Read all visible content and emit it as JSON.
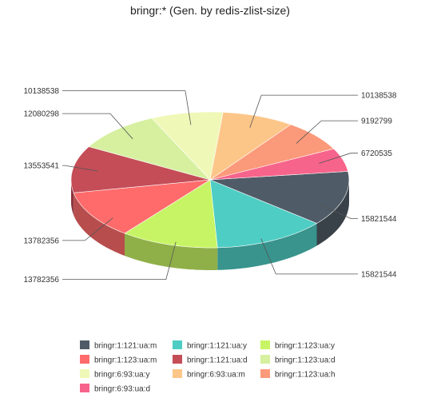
{
  "chart_data": {
    "type": "pie",
    "title": "bringr:* (Gen. by redis-zlist-size)",
    "slices": [
      {
        "label": "bringr:1:121:ua:m",
        "value": 15821544,
        "color": "#4f5b66"
      },
      {
        "label": "bringr:1:121:ua:y",
        "value": 15821544,
        "color": "#4ecdc4"
      },
      {
        "label": "bringr:1:123:ua:y",
        "value": 13782356,
        "color": "#c7f464"
      },
      {
        "label": "bringr:1:123:ua:m",
        "value": 13782356,
        "color": "#ff6b6b"
      },
      {
        "label": "bringr:1:121:ua:d",
        "value": 13553541,
        "color": "#c44d58"
      },
      {
        "label": "bringr:1:123:ua:d",
        "value": 12080298,
        "color": "#d6f0a0"
      },
      {
        "label": "bringr:6:93:ua:y",
        "value": 10138538,
        "color": "#f0f8b8"
      },
      {
        "label": "bringr:6:93:ua:m",
        "value": 10138538,
        "color": "#fdc689"
      },
      {
        "label": "bringr:1:123:ua:h",
        "value": 9192799,
        "color": "#fb9a7a"
      },
      {
        "label": "bringr:6:93:ua:d",
        "value": 6720535,
        "color": "#f7648b"
      }
    ],
    "legend_position": "bottom",
    "data_labels": "outside"
  }
}
